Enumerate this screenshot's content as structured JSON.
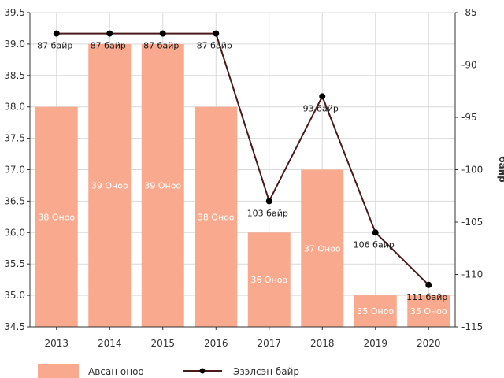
{
  "chart_data": {
    "type": "bar+line",
    "categories": [
      "2013",
      "2014",
      "2015",
      "2016",
      "2017",
      "2018",
      "2019",
      "2020"
    ],
    "bar_series": {
      "name": "Авсан оноо",
      "values": [
        38,
        39,
        39,
        38,
        36,
        37,
        35,
        35
      ],
      "labels": [
        "38 Оноо",
        "39 Оноо",
        "39 Оноо",
        "38 Оноо",
        "36 Оноо",
        "37 Оноо",
        "35 Оноо",
        "35 Оноо"
      ],
      "color": "#f9a98e"
    },
    "line_series": {
      "name": "Эзэлсэн байр",
      "values": [
        -87,
        -87,
        -87,
        -87,
        -103,
        -93,
        -106,
        -111
      ],
      "labels": [
        "87 байр",
        "87 байр",
        "87 байр",
        "87 байр",
        "103 байр",
        "93 байр",
        "106 байр",
        "111 байр"
      ],
      "color": "#4a1a1a"
    },
    "y_left": {
      "min": 34.5,
      "max": 39.5,
      "ticks": [
        "34.5",
        "35.0",
        "35.5",
        "36.0",
        "36.5",
        "37.0",
        "37.5",
        "38.0",
        "38.5",
        "39.0",
        "39.5"
      ]
    },
    "y_right": {
      "label": "байр",
      "min": -115,
      "max": -85,
      "ticks": [
        "-85",
        "-90",
        "-95",
        "-100",
        "-105",
        "-110",
        "-115"
      ]
    },
    "grid": true,
    "legend_position": "bottom"
  }
}
